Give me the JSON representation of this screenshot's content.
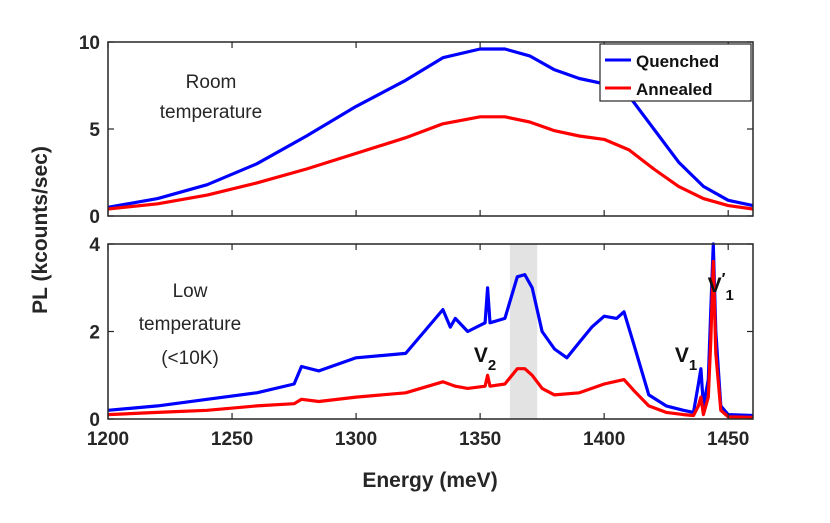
{
  "chart_data": [
    {
      "type": "line",
      "panel": "top",
      "annotation": [
        "Room",
        "temperature"
      ],
      "xlim": [
        1200,
        1460
      ],
      "ylim": [
        0,
        10
      ],
      "yticks": [
        "0",
        "5",
        "10"
      ],
      "legend": {
        "placement": "top-right",
        "entries": [
          "Quenched",
          "Annealed"
        ]
      },
      "series": [
        {
          "name": "Quenched",
          "color": "#0000ff",
          "x": [
            1200,
            1220,
            1240,
            1260,
            1280,
            1300,
            1320,
            1335,
            1350,
            1360,
            1370,
            1380,
            1390,
            1400,
            1410,
            1420,
            1430,
            1440,
            1450,
            1460
          ],
          "y": [
            0.5,
            1.0,
            1.8,
            3.0,
            4.6,
            6.3,
            7.8,
            9.1,
            9.6,
            9.6,
            9.2,
            8.4,
            7.9,
            7.6,
            6.9,
            5.0,
            3.1,
            1.7,
            0.9,
            0.6
          ]
        },
        {
          "name": "Annealed",
          "color": "#ff0000",
          "x": [
            1200,
            1220,
            1240,
            1260,
            1280,
            1300,
            1320,
            1335,
            1350,
            1360,
            1370,
            1380,
            1390,
            1400,
            1410,
            1420,
            1430,
            1440,
            1450,
            1460
          ],
          "y": [
            0.4,
            0.7,
            1.2,
            1.9,
            2.7,
            3.6,
            4.5,
            5.3,
            5.7,
            5.7,
            5.4,
            4.9,
            4.6,
            4.4,
            3.8,
            2.7,
            1.7,
            1.0,
            0.6,
            0.4
          ]
        }
      ]
    },
    {
      "type": "line",
      "panel": "bottom",
      "annotation": [
        "Low",
        "temperature",
        "(<10K)"
      ],
      "xlim": [
        1200,
        1460
      ],
      "ylim": [
        0,
        4
      ],
      "xticks": [
        "1200",
        "1250",
        "1300",
        "1350",
        "1400",
        "1450"
      ],
      "yticks": [
        "0",
        "2",
        "4"
      ],
      "xlabel": "Energy (meV)",
      "shaded_region": [
        1362,
        1373
      ],
      "peak_labels": [
        {
          "text": "V",
          "sub": "2",
          "x": 1352,
          "y": 1.3
        },
        {
          "text": "V",
          "sub": "1",
          "x": 1433,
          "y": 1.3
        },
        {
          "text": "V",
          "sub": "1",
          "prime": "′",
          "x": 1447,
          "y": 2.9
        }
      ],
      "series": [
        {
          "name": "Quenched",
          "color": "#0000ff",
          "x": [
            1200,
            1220,
            1240,
            1260,
            1275,
            1278,
            1285,
            1300,
            1320,
            1335,
            1338,
            1340,
            1345,
            1352,
            1353,
            1354,
            1360,
            1365,
            1368,
            1371,
            1375,
            1380,
            1385,
            1390,
            1395,
            1400,
            1405,
            1408,
            1412,
            1418,
            1425,
            1432,
            1436,
            1438,
            1439,
            1440,
            1442,
            1443,
            1444,
            1445,
            1447,
            1450,
            1460
          ],
          "y": [
            0.2,
            0.3,
            0.45,
            0.6,
            0.8,
            1.2,
            1.1,
            1.4,
            1.5,
            2.5,
            2.1,
            2.3,
            2.0,
            2.2,
            3.0,
            2.2,
            2.3,
            3.25,
            3.3,
            3.0,
            2.0,
            1.6,
            1.4,
            1.75,
            2.1,
            2.35,
            2.3,
            2.45,
            1.7,
            0.55,
            0.3,
            0.2,
            0.15,
            0.8,
            1.15,
            0.3,
            0.9,
            2.5,
            4.0,
            2.0,
            0.3,
            0.1,
            0.08
          ]
        },
        {
          "name": "Annealed",
          "color": "#ff0000",
          "x": [
            1200,
            1220,
            1240,
            1260,
            1275,
            1278,
            1285,
            1300,
            1320,
            1335,
            1340,
            1345,
            1352,
            1353,
            1354,
            1360,
            1365,
            1368,
            1371,
            1375,
            1380,
            1390,
            1400,
            1408,
            1412,
            1418,
            1425,
            1432,
            1436,
            1438,
            1439,
            1440,
            1442,
            1443,
            1444,
            1445,
            1447,
            1450,
            1460
          ],
          "y": [
            0.1,
            0.15,
            0.2,
            0.3,
            0.35,
            0.45,
            0.4,
            0.5,
            0.6,
            0.85,
            0.75,
            0.7,
            0.75,
            1.0,
            0.75,
            0.8,
            1.15,
            1.15,
            1.0,
            0.7,
            0.55,
            0.6,
            0.8,
            0.9,
            0.65,
            0.3,
            0.15,
            0.1,
            0.08,
            0.3,
            0.5,
            0.1,
            0.5,
            1.8,
            3.6,
            1.5,
            0.2,
            0.05,
            0.04
          ]
        }
      ]
    }
  ],
  "shared": {
    "ylabel": "PL (kcounts/sec)"
  }
}
